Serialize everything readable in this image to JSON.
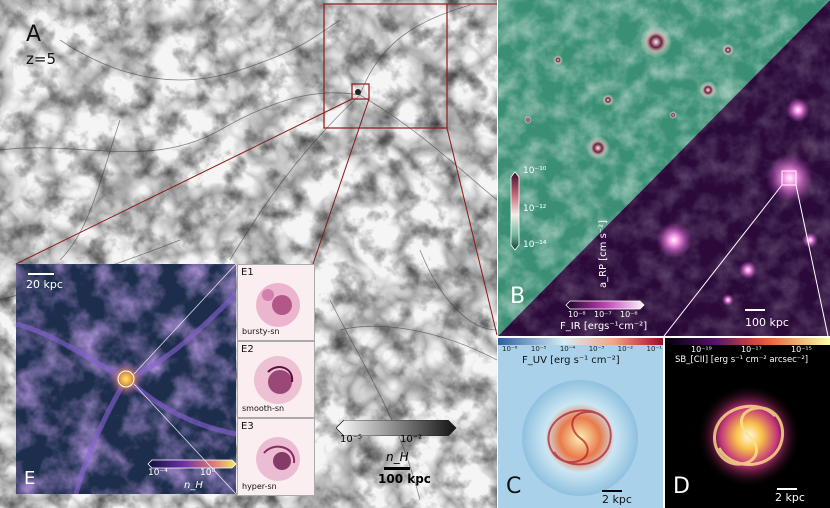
{
  "panels": {
    "a": {
      "letter": "A",
      "redshift": "z=5"
    },
    "b": {
      "letter": "B",
      "scale": "100 kpc"
    },
    "c": {
      "letter": "C",
      "scale": "2 kpc"
    },
    "d": {
      "letter": "D",
      "scale": "2 kpc"
    },
    "e": {
      "letter": "E",
      "scale": "20 kpc"
    },
    "e1": {
      "id": "E1",
      "model": "bursty-sn"
    },
    "e2": {
      "id": "E2",
      "model": "smooth-sn"
    },
    "e3": {
      "id": "E3",
      "model": "hyper-sn"
    }
  },
  "colorbars": {
    "nh_large": {
      "ticks": [
        "10⁻⁵",
        "10⁻²"
      ],
      "label": "n_H",
      "scale": "100 kpc"
    },
    "arp": {
      "ticks": [
        "10⁻¹⁰",
        "10⁻¹²",
        "10⁻¹⁴"
      ],
      "label": "a_RP [cm s⁻²]"
    },
    "fir": {
      "ticks": [
        "10⁻⁸",
        "10⁻⁷",
        "10⁻⁶"
      ],
      "label": "F_IR [ergs⁻¹cm⁻²]"
    },
    "fuv": {
      "ticks": [
        "10⁻⁶",
        "10⁻⁵",
        "10⁻⁴",
        "10⁻³",
        "10⁻²",
        "10⁻¹"
      ],
      "label": "F_UV [erg s⁻¹ cm⁻²]"
    },
    "sbcii": {
      "ticks": [
        "10⁻¹⁹",
        "10⁻¹⁷",
        "10⁻¹⁵"
      ],
      "label": "SB_[CII] [erg s⁻¹ cm⁻² arcsec⁻²]"
    },
    "nh_small": {
      "ticks": [
        "10⁻⁴",
        "10⁰"
      ],
      "label": "n_H"
    }
  }
}
